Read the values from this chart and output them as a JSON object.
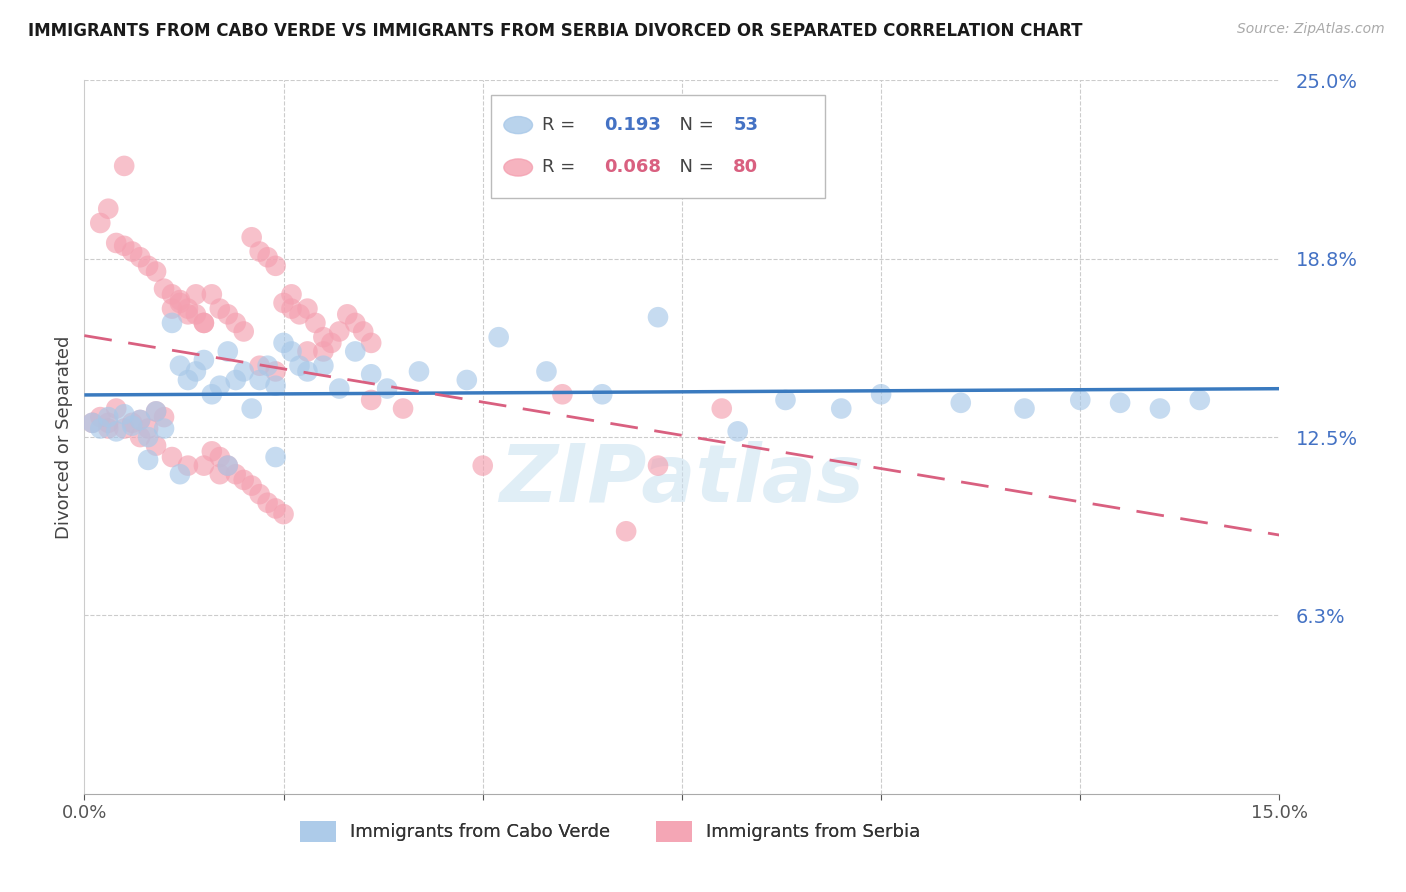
{
  "title": "IMMIGRANTS FROM CABO VERDE VS IMMIGRANTS FROM SERBIA DIVORCED OR SEPARATED CORRELATION CHART",
  "source": "Source: ZipAtlas.com",
  "ylabel": "Divorced or Separated",
  "legend_cabo": "Immigrants from Cabo Verde",
  "legend_serbia": "Immigrants from Serbia",
  "R_cabo": 0.193,
  "N_cabo": 53,
  "R_serbia": 0.068,
  "N_serbia": 80,
  "color_cabo": "#a8c8e8",
  "color_serbia": "#f4a0b0",
  "line_color_cabo": "#3a7abf",
  "line_color_serbia": "#d96080",
  "xmin": 0.0,
  "xmax": 0.15,
  "ymin": 0.0,
  "ymax": 0.25,
  "cabo_x": [
    0.001,
    0.002,
    0.003,
    0.004,
    0.005,
    0.006,
    0.007,
    0.008,
    0.009,
    0.01,
    0.011,
    0.012,
    0.013,
    0.014,
    0.015,
    0.016,
    0.017,
    0.018,
    0.019,
    0.02,
    0.021,
    0.022,
    0.023,
    0.024,
    0.025,
    0.026,
    0.027,
    0.028,
    0.03,
    0.032,
    0.034,
    0.036,
    0.038,
    0.042,
    0.048,
    0.052,
    0.058,
    0.065,
    0.072,
    0.082,
    0.088,
    0.095,
    0.1,
    0.11,
    0.118,
    0.125,
    0.13,
    0.135,
    0.14,
    0.008,
    0.012,
    0.018,
    0.024
  ],
  "cabo_y": [
    0.13,
    0.128,
    0.132,
    0.127,
    0.133,
    0.129,
    0.131,
    0.125,
    0.134,
    0.128,
    0.165,
    0.15,
    0.145,
    0.148,
    0.152,
    0.14,
    0.143,
    0.155,
    0.145,
    0.148,
    0.135,
    0.145,
    0.15,
    0.143,
    0.158,
    0.155,
    0.15,
    0.148,
    0.15,
    0.142,
    0.155,
    0.147,
    0.142,
    0.148,
    0.145,
    0.16,
    0.148,
    0.14,
    0.167,
    0.127,
    0.138,
    0.135,
    0.14,
    0.137,
    0.135,
    0.138,
    0.137,
    0.135,
    0.138,
    0.117,
    0.112,
    0.115,
    0.118
  ],
  "serbia_x": [
    0.001,
    0.002,
    0.003,
    0.004,
    0.005,
    0.006,
    0.007,
    0.008,
    0.009,
    0.01,
    0.011,
    0.012,
    0.013,
    0.014,
    0.015,
    0.016,
    0.017,
    0.018,
    0.019,
    0.02,
    0.021,
    0.022,
    0.023,
    0.024,
    0.025,
    0.026,
    0.027,
    0.028,
    0.029,
    0.03,
    0.031,
    0.032,
    0.033,
    0.034,
    0.035,
    0.036,
    0.002,
    0.003,
    0.004,
    0.005,
    0.006,
    0.007,
    0.008,
    0.009,
    0.01,
    0.011,
    0.012,
    0.013,
    0.014,
    0.015,
    0.016,
    0.017,
    0.018,
    0.019,
    0.02,
    0.021,
    0.022,
    0.023,
    0.024,
    0.025,
    0.003,
    0.005,
    0.007,
    0.009,
    0.011,
    0.013,
    0.015,
    0.017,
    0.022,
    0.024,
    0.026,
    0.028,
    0.03,
    0.036,
    0.04,
    0.05,
    0.06,
    0.068,
    0.072,
    0.08
  ],
  "serbia_y": [
    0.13,
    0.132,
    0.128,
    0.135,
    0.22,
    0.13,
    0.131,
    0.128,
    0.134,
    0.132,
    0.17,
    0.172,
    0.168,
    0.175,
    0.165,
    0.175,
    0.17,
    0.168,
    0.165,
    0.162,
    0.195,
    0.19,
    0.188,
    0.185,
    0.172,
    0.175,
    0.168,
    0.17,
    0.165,
    0.16,
    0.158,
    0.162,
    0.168,
    0.165,
    0.162,
    0.158,
    0.2,
    0.205,
    0.193,
    0.192,
    0.19,
    0.188,
    0.185,
    0.183,
    0.177,
    0.175,
    0.173,
    0.17,
    0.168,
    0.165,
    0.12,
    0.118,
    0.115,
    0.112,
    0.11,
    0.108,
    0.105,
    0.102,
    0.1,
    0.098,
    0.13,
    0.128,
    0.125,
    0.122,
    0.118,
    0.115,
    0.115,
    0.112,
    0.15,
    0.148,
    0.17,
    0.155,
    0.155,
    0.138,
    0.135,
    0.115,
    0.14,
    0.092,
    0.115,
    0.135
  ],
  "watermark": "ZIPatlas",
  "background_color": "#ffffff",
  "grid_color": "#cccccc"
}
